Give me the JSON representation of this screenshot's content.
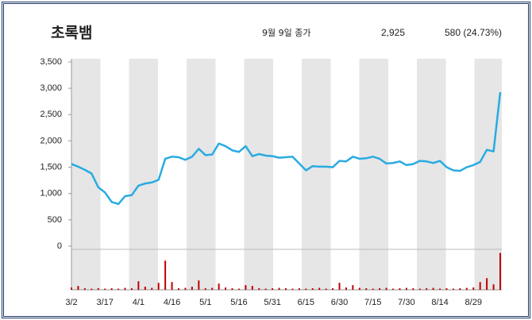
{
  "header": {
    "title": "초록뱀",
    "date_label": "9월 9일 종가",
    "close": "2,925",
    "change": "580 (24.73%)"
  },
  "chart_data": {
    "type": "line",
    "categories": [
      "3/2",
      null,
      null,
      null,
      null,
      "3/17",
      null,
      null,
      null,
      null,
      "4/1",
      null,
      null,
      null,
      null,
      "4/16",
      null,
      null,
      null,
      null,
      "5/1",
      null,
      null,
      null,
      null,
      "5/16",
      null,
      null,
      null,
      null,
      "5/31",
      null,
      null,
      null,
      null,
      "6/15",
      null,
      null,
      null,
      null,
      "6/30",
      null,
      null,
      null,
      null,
      "7/15",
      null,
      null,
      null,
      null,
      "7/30",
      null,
      null,
      null,
      null,
      "8/14",
      null,
      null,
      null,
      null,
      "8/29",
      null,
      null,
      null,
      null
    ],
    "series": [
      {
        "color": "#29abe2",
        "values": [
          1560,
          1510,
          1450,
          1380,
          1120,
          1020,
          840,
          800,
          950,
          970,
          1150,
          1190,
          1210,
          1260,
          1660,
          1700,
          1690,
          1640,
          1700,
          1850,
          1730,
          1740,
          1950,
          1900,
          1820,
          1790,
          1900,
          1710,
          1750,
          1720,
          1710,
          1680,
          1690,
          1700,
          1570,
          1440,
          1520,
          1510,
          1510,
          1500,
          1620,
          1610,
          1700,
          1660,
          1670,
          1700,
          1660,
          1570,
          1580,
          1610,
          1540,
          1560,
          1620,
          1610,
          1580,
          1620,
          1500,
          1440,
          1430,
          1500,
          1540,
          1600,
          1830,
          1800,
          2925
        ]
      }
    ],
    "volume": {
      "color": "#c00000",
      "values": [
        6,
        10,
        4,
        3,
        4,
        3,
        4,
        3,
        5,
        4,
        22,
        8,
        5,
        18,
        75,
        20,
        4,
        5,
        8,
        24,
        4,
        5,
        16,
        6,
        4,
        3,
        12,
        10,
        4,
        3,
        4,
        5,
        4,
        3,
        4,
        3,
        4,
        5,
        3,
        4,
        18,
        6,
        12,
        5,
        4,
        3,
        4,
        5,
        3,
        4,
        5,
        4,
        3,
        4,
        5,
        3,
        4,
        3,
        4,
        5,
        6,
        20,
        30,
        14,
        95
      ]
    },
    "volume_lim": [
      0,
      100
    ],
    "ylim": [
      0,
      3500
    ],
    "yticks": [
      0,
      500,
      {
        "value": 1000,
        "label": "1,000"
      },
      {
        "value": 1500,
        "label": "1,500"
      },
      {
        "value": 2000,
        "label": "2,000"
      },
      {
        "value": 2500,
        "label": "2,500"
      },
      {
        "value": 3000,
        "label": "3,000"
      },
      {
        "value": 3500,
        "label": "3,500"
      }
    ]
  }
}
